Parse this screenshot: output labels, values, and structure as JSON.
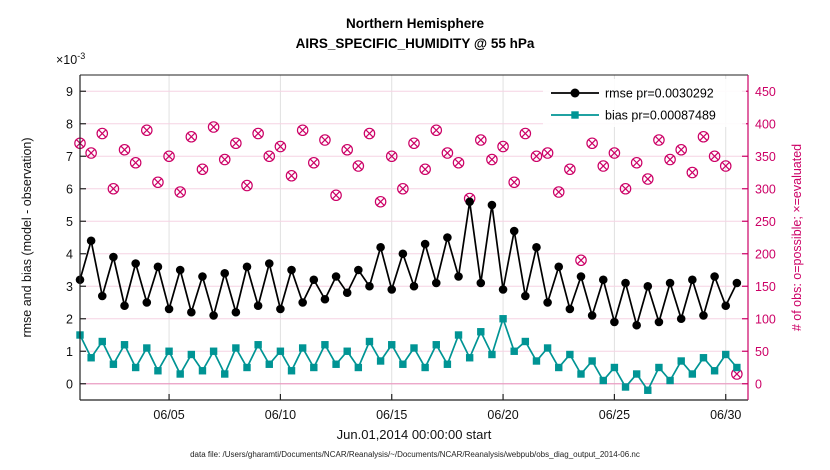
{
  "title": {
    "line1": "Northern Hemisphere",
    "line2": "AIRS_SPECIFIC_HUMIDITY @ 55 hPa"
  },
  "caption": "data file: /Users/gharamti/Documents/NCAR/Reanalysis/~/Documents/NCAR/Reanalysis/webpub/obs_diag_output_2014-06.nc",
  "chart_data": {
    "type": "line",
    "title": "Northern Hemisphere — AIRS_SPECIFIC_HUMIDITY @ 55 hPa",
    "xlabel": "Jun.01,2014 00:00:00 start",
    "ylabel_left": "rmse and bias (model - observation)",
    "ylabel_right": "# of obs: o=possible; ×=evaluated",
    "exponent": {
      "base": "×10",
      "power": "-3"
    },
    "grid": true,
    "legend_position": "top-right-inside",
    "xlim_days": [
      0,
      30
    ],
    "ylim_left": [
      -0.5,
      9.5
    ],
    "ylim_right": [
      -25,
      475
    ],
    "x_tick_positions": [
      4,
      9,
      14,
      19,
      24,
      29
    ],
    "x_tick_labels": [
      "06/05",
      "06/10",
      "06/15",
      "06/20",
      "06/25",
      "06/30"
    ],
    "left_ticks": [
      0,
      1,
      2,
      3,
      4,
      5,
      6,
      7,
      8,
      9
    ],
    "right_ticks": [
      0,
      50,
      100,
      150,
      200,
      250,
      300,
      350,
      400,
      450
    ],
    "samples_per_day": 2,
    "colors": {
      "rmse": "#000000",
      "bias": "#009494",
      "obs": "#CC0066",
      "axis": "#222222",
      "grid_h": "#f5d3e3",
      "grid_v": "#e0e0e0",
      "zero_line": "#ea9cc2"
    },
    "series": [
      {
        "name": "rmse pr=0.0030292",
        "color": "#000000",
        "marker": "circle",
        "axis": "left",
        "in_legend": true,
        "values": [
          3.2,
          4.4,
          2.7,
          3.9,
          2.4,
          3.7,
          2.5,
          3.6,
          2.3,
          3.5,
          2.2,
          3.3,
          2.1,
          3.4,
          2.2,
          3.6,
          2.4,
          3.7,
          2.3,
          3.5,
          2.5,
          3.2,
          2.6,
          3.3,
          2.8,
          3.5,
          3.0,
          4.2,
          2.9,
          4.0,
          3.0,
          4.3,
          3.1,
          4.5,
          3.3,
          5.6,
          3.1,
          5.5,
          2.9,
          4.7,
          2.7,
          4.2,
          2.5,
          3.6,
          2.3,
          3.3,
          2.1,
          3.2,
          1.9,
          3.1,
          1.8,
          3.0,
          1.9,
          3.1,
          2.0,
          3.2,
          2.1,
          3.3,
          2.4,
          3.1
        ]
      },
      {
        "name": "bias pr=0.00087489",
        "color": "#009494",
        "marker": "square",
        "axis": "left",
        "in_legend": true,
        "values": [
          1.5,
          0.8,
          1.3,
          0.6,
          1.2,
          0.5,
          1.1,
          0.4,
          1.0,
          0.3,
          0.9,
          0.4,
          1.0,
          0.3,
          1.1,
          0.5,
          1.2,
          0.6,
          1.0,
          0.4,
          1.1,
          0.5,
          1.2,
          0.6,
          1.0,
          0.5,
          1.3,
          0.7,
          1.2,
          0.6,
          1.1,
          0.5,
          1.2,
          0.6,
          1.5,
          0.8,
          1.6,
          0.9,
          2.0,
          1.0,
          1.3,
          0.7,
          1.1,
          0.5,
          0.9,
          0.3,
          0.7,
          0.1,
          0.5,
          -0.1,
          0.3,
          -0.2,
          0.5,
          0.1,
          0.7,
          0.3,
          0.8,
          0.4,
          0.9,
          0.5
        ]
      },
      {
        "name": "# of obs (o=possible, x=evaluated)",
        "color": "#CC0066",
        "marker": "circle-x",
        "axis": "right",
        "line": false,
        "in_legend": false,
        "values": [
          370,
          355,
          385,
          300,
          360,
          340,
          390,
          310,
          350,
          295,
          380,
          330,
          395,
          345,
          370,
          305,
          385,
          350,
          365,
          320,
          390,
          340,
          375,
          290,
          360,
          335,
          385,
          280,
          350,
          300,
          370,
          330,
          390,
          355,
          340,
          285,
          375,
          345,
          365,
          310,
          385,
          350,
          355,
          295,
          330,
          190,
          370,
          335,
          355,
          300,
          340,
          315,
          375,
          345,
          360,
          325,
          380,
          350,
          335,
          15
        ]
      }
    ],
    "legend_labels": [
      "rmse pr=0.0030292",
      "bias pr=0.00087489"
    ]
  }
}
